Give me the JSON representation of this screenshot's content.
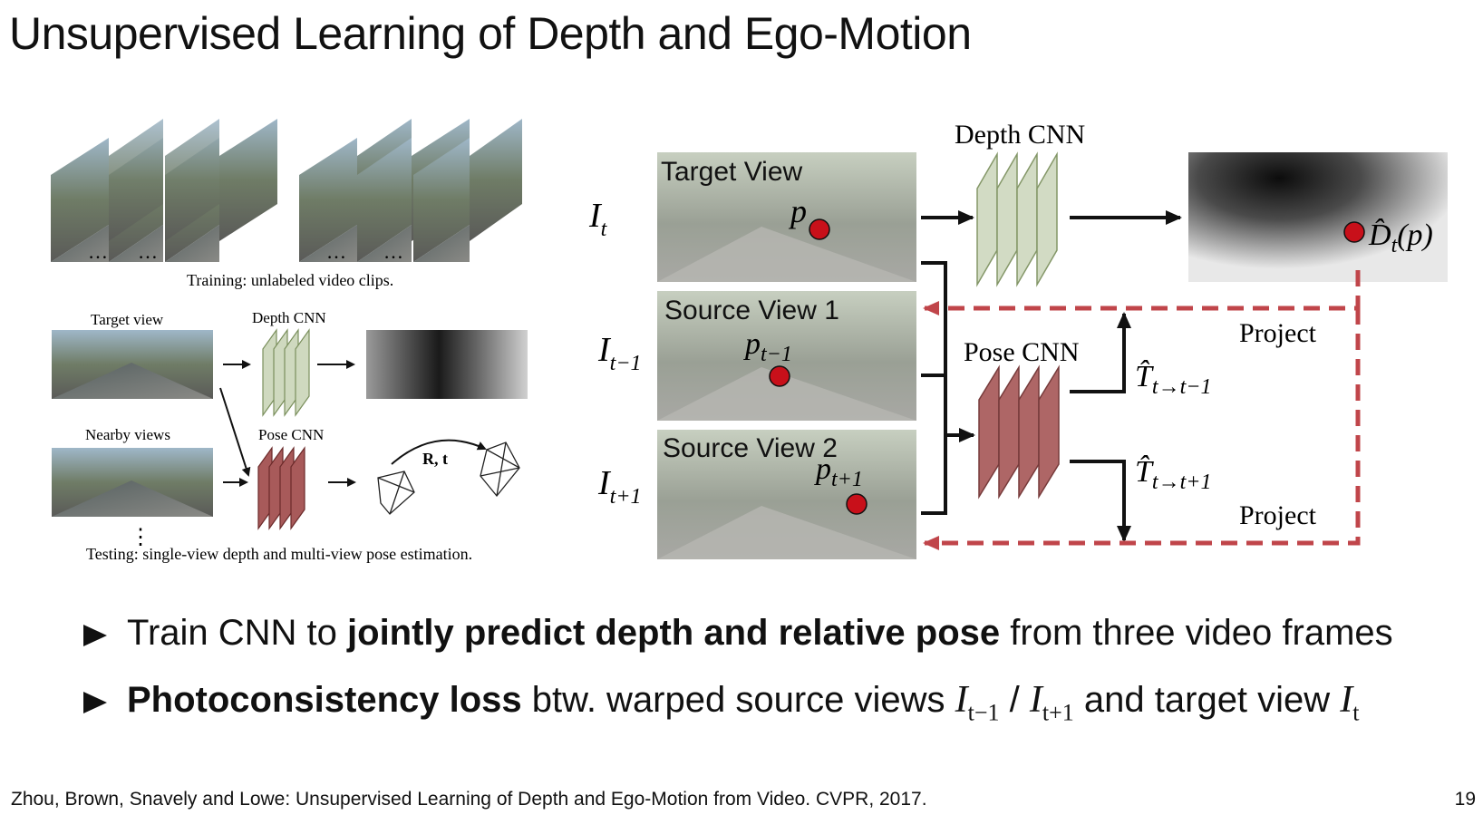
{
  "title": "Unsupervised Learning of Depth and Ego-Motion",
  "left_figure": {
    "training_caption": "Training: unlabeled video clips.",
    "ellipsis": "…",
    "target_view_label": "Target view",
    "depth_cnn_label": "Depth CNN",
    "nearby_views_label": "Nearby views",
    "pose_cnn_label": "Pose CNN",
    "rt_label": "R, t",
    "vdots": "⋮",
    "testing_caption": "Testing: single-view depth and multi-view pose estimation."
  },
  "right_figure": {
    "target_view": "Target View",
    "source_view_1": "Source View 1",
    "source_view_2": "Source View 2",
    "i_t": "I",
    "i_t_sub": "t",
    "i_tm1_sub": "t−1",
    "i_tp1_sub": "t+1",
    "p": "p",
    "p_tm1": "p",
    "p_tm1_sub": "t−1",
    "p_tp1_sub": "t+1",
    "depth_cnn": "Depth CNN",
    "pose_cnn": "Pose CNN",
    "d_hat": "D̂",
    "d_hat_sub": "t",
    "d_hat_arg": "(p)",
    "t_hat": "T̂",
    "t_hat_sub_1": "t→t−1",
    "t_hat_sub_2": "t→t+1",
    "project_1": "Project",
    "project_2": "Project"
  },
  "bullets": [
    {
      "pre": "Train CNN to ",
      "bold": "jointly predict depth and relative pose",
      "post": " from three video frames"
    },
    {
      "bold": "Photoconsistency loss",
      "mid": " btw. warped source views ",
      "m1": "I",
      "m1_sub": "t−1",
      "sep": " / ",
      "m2": "I",
      "m2_sub": "t+1",
      "post": " and target view ",
      "m3": "I",
      "m3_sub": "t"
    }
  ],
  "citation": "Zhou, Brown, Snavely and Lowe: Unsupervised Learning of Depth and Ego-Motion from Video. CVPR, 2017.",
  "page_number": "19",
  "colors": {
    "depth_cnn_fill": "#cfd9bf",
    "depth_cnn_stroke": "#7a8f5c",
    "pose_cnn_fill": "#a85a5a",
    "pose_cnn_stroke": "#6b2a2a",
    "project_arrow": "#c0454a",
    "point": "#c8101a"
  }
}
